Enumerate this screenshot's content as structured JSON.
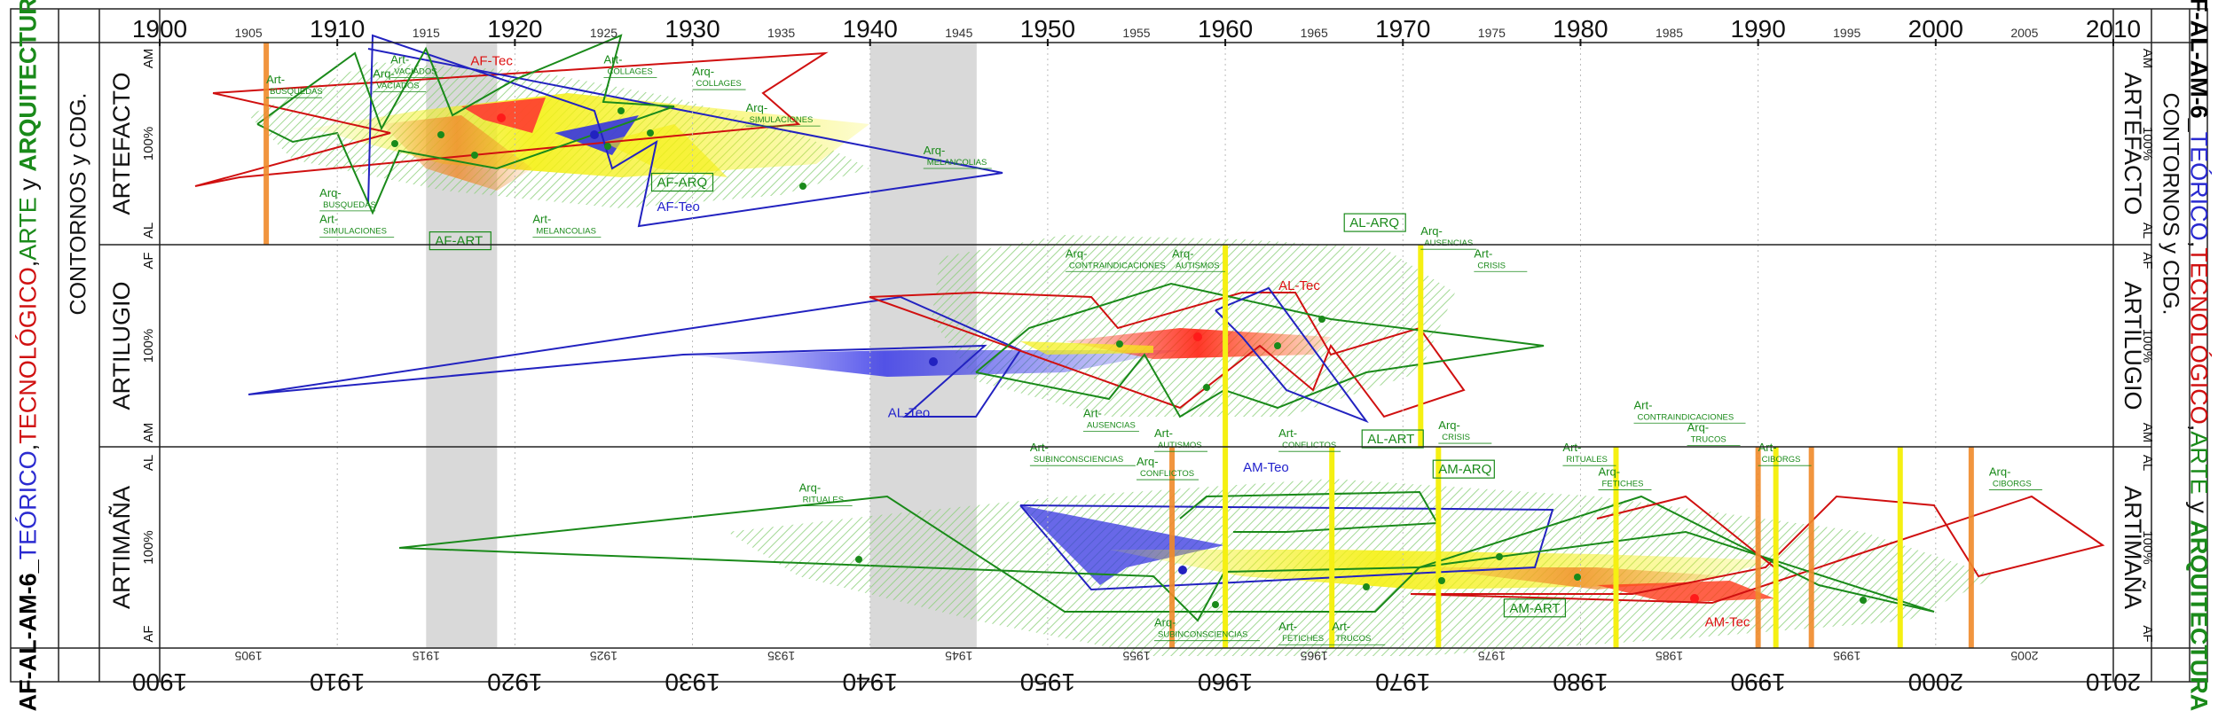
{
  "title": {
    "code": "AF-AL-AM-6",
    "sep": "_",
    "teorico": "TEÓRICO",
    "tecnologico": "TECNOLÓGICO",
    "arte": "ARTE",
    "y": "y",
    "arquitectura": "ARQUITECTURA",
    "comma": ",",
    "subtitle": "CONTORNOS y CDG."
  },
  "colors": {
    "teo": "#2222cc",
    "tec": "#dd1111",
    "art": "#1a8a1a",
    "gray_band": "#d9d9d9",
    "orange_line": "#f08a2a",
    "yellow_line": "#f5f012",
    "hatch": "#8ccf7a"
  },
  "timeline": {
    "start": 1900,
    "end": 2010,
    "major": [
      "1900",
      "1910",
      "1920",
      "1930",
      "1940",
      "1950",
      "1960",
      "1970",
      "1980",
      "1990",
      "2000",
      "2010"
    ],
    "minor": [
      "1905",
      "1915",
      "1925",
      "1935",
      "1945",
      "1955",
      "1965",
      "1975",
      "1985",
      "1995",
      "2005"
    ]
  },
  "gray_periods": [
    [
      1915,
      1919
    ],
    [
      1940,
      1946
    ]
  ],
  "bands": [
    {
      "name": "ARTEFACTO",
      "top": "AM",
      "mid": "100%",
      "bottom": "AL",
      "top_r": "AM",
      "bottom_r": "AL"
    },
    {
      "name": "ARTILUGIO",
      "top": "AF",
      "mid": "100%",
      "bottom": "AM",
      "top_r": "AF",
      "bottom_r": "AM"
    },
    {
      "name": "ARTIMAÑA",
      "top": "AL",
      "mid": "100%",
      "bottom": "AF",
      "top_r": "AL",
      "bottom_r": "AF"
    }
  ],
  "year_lines": {
    "orange": [
      1906,
      1957,
      1990,
      1993,
      2002
    ],
    "yellow": [
      1960,
      1971,
      1966,
      1972,
      1982,
      1991,
      1998
    ]
  },
  "labels": {
    "band1": [
      {
        "t": "Art-",
        "s": "BUSQUEDAS",
        "c": "art",
        "x": 1906,
        "y": 0.15
      },
      {
        "t": "Art-",
        "s": "VACIADOS",
        "c": "art",
        "x": 1913,
        "y": 0.05
      },
      {
        "t": "Arq-",
        "s": "VACIADOS",
        "c": "art",
        "x": 1912,
        "y": 0.12
      },
      {
        "t": "AF-Tec",
        "s": "",
        "c": "tec",
        "x": 1917.5,
        "y": 0.06
      },
      {
        "t": "Art-",
        "s": "COLLAGES",
        "c": "art",
        "x": 1925,
        "y": 0.05
      },
      {
        "t": "Arq-",
        "s": "COLLAGES",
        "c": "art",
        "x": 1930,
        "y": 0.11
      },
      {
        "t": "Arq-",
        "s": "SIMULACIONES",
        "c": "art",
        "x": 1933,
        "y": 0.29
      },
      {
        "t": "Arq-",
        "s": "MELANCOLIAS",
        "c": "art",
        "x": 1943,
        "y": 0.5
      },
      {
        "t": "AF-ARQ",
        "s": "",
        "c": "art",
        "x": 1928,
        "y": 0.66
      },
      {
        "t": "AF-Teo",
        "s": "",
        "c": "teo",
        "x": 1928,
        "y": 0.78
      },
      {
        "t": "Arq-",
        "s": "BUSQUEDAS",
        "c": "art",
        "x": 1909,
        "y": 0.71
      },
      {
        "t": "Art-",
        "s": "SIMULACIONES",
        "c": "art",
        "x": 1909,
        "y": 0.84
      },
      {
        "t": "Art-",
        "s": "MELANCOLIAS",
        "c": "art",
        "x": 1921,
        "y": 0.84
      },
      {
        "t": "AF-ART",
        "s": "",
        "c": "art",
        "x": 1915.5,
        "y": 0.95
      }
    ],
    "band2": [
      {
        "t": "Arq-",
        "s": "CONTRAINDICACIONES",
        "c": "art",
        "x": 1951,
        "y": 0.01
      },
      {
        "t": "Arq-",
        "s": "AUTISMOS",
        "c": "art",
        "x": 1957,
        "y": 0.01
      },
      {
        "t": "AL-ARQ",
        "s": "",
        "c": "art",
        "x": 1967,
        "y": -0.14
      },
      {
        "t": "Arq-",
        "s": "AUSENCIAS",
        "c": "art",
        "x": 1971,
        "y": -0.1
      },
      {
        "t": "AL-Tec",
        "s": "",
        "c": "tec",
        "x": 1963,
        "y": 0.17
      },
      {
        "t": "Art-",
        "s": "CRISIS",
        "c": "art",
        "x": 1974,
        "y": 0.01
      },
      {
        "t": "AL-Teo",
        "s": "",
        "c": "teo",
        "x": 1941,
        "y": 0.8
      },
      {
        "t": "Art-",
        "s": "AUSENCIAS",
        "c": "art",
        "x": 1952,
        "y": 0.8
      },
      {
        "t": "Art-",
        "s": "AUTISMOS",
        "c": "art",
        "x": 1956,
        "y": 0.9
      },
      {
        "t": "Art-",
        "s": "CONFLICTOS",
        "c": "art",
        "x": 1963,
        "y": 0.9
      },
      {
        "t": "AL-ART",
        "s": "",
        "c": "art",
        "x": 1968,
        "y": 0.93
      },
      {
        "t": "Arq-",
        "s": "CRISIS",
        "c": "art",
        "x": 1972,
        "y": 0.86
      },
      {
        "t": "Art-",
        "s": "CONTRAINDICACIONES",
        "c": "art",
        "x": 1983,
        "y": 0.76
      }
    ],
    "band3": [
      {
        "t": "Art-",
        "s": "SUBINCONSCIENCIAS",
        "c": "art",
        "x": 1949,
        "y": -0.03
      },
      {
        "t": "Arq-",
        "s": "CONFLICTOS",
        "c": "art",
        "x": 1955,
        "y": 0.04
      },
      {
        "t": "AM-Teo",
        "s": "",
        "c": "teo",
        "x": 1961,
        "y": 0.07
      },
      {
        "t": "AM-ARQ",
        "s": "",
        "c": "art",
        "x": 1972,
        "y": 0.08
      },
      {
        "t": "Art-",
        "s": "RITUALES",
        "c": "art",
        "x": 1979,
        "y": -0.03
      },
      {
        "t": "Arq-",
        "s": "FETICHES",
        "c": "art",
        "x": 1981,
        "y": 0.09
      },
      {
        "t": "Arq-",
        "s": "TRUCOS",
        "c": "art",
        "x": 1986,
        "y": -0.13
      },
      {
        "t": "Art-",
        "s": "CIBORGS",
        "c": "art",
        "x": 1990,
        "y": -0.03
      },
      {
        "t": "Arq-",
        "s": "CIBORGS",
        "c": "art",
        "x": 2003,
        "y": 0.09
      },
      {
        "t": "Arq-",
        "s": "RITUALES",
        "c": "art",
        "x": 1936,
        "y": 0.17
      },
      {
        "t": "Arq-",
        "s": "SUBINCONSCIENCIAS",
        "c": "art",
        "x": 1956,
        "y": 0.84
      },
      {
        "t": "Art-",
        "s": "FETICHES",
        "c": "art",
        "x": 1963,
        "y": 0.86
      },
      {
        "t": "Art-",
        "s": "TRUCOS",
        "c": "art",
        "x": 1966,
        "y": 0.86
      },
      {
        "t": "AM-ART",
        "s": "",
        "c": "art",
        "x": 1976,
        "y": 0.77
      },
      {
        "t": "AM-Tec",
        "s": "",
        "c": "tec",
        "x": 1987,
        "y": 0.84
      }
    ]
  }
}
